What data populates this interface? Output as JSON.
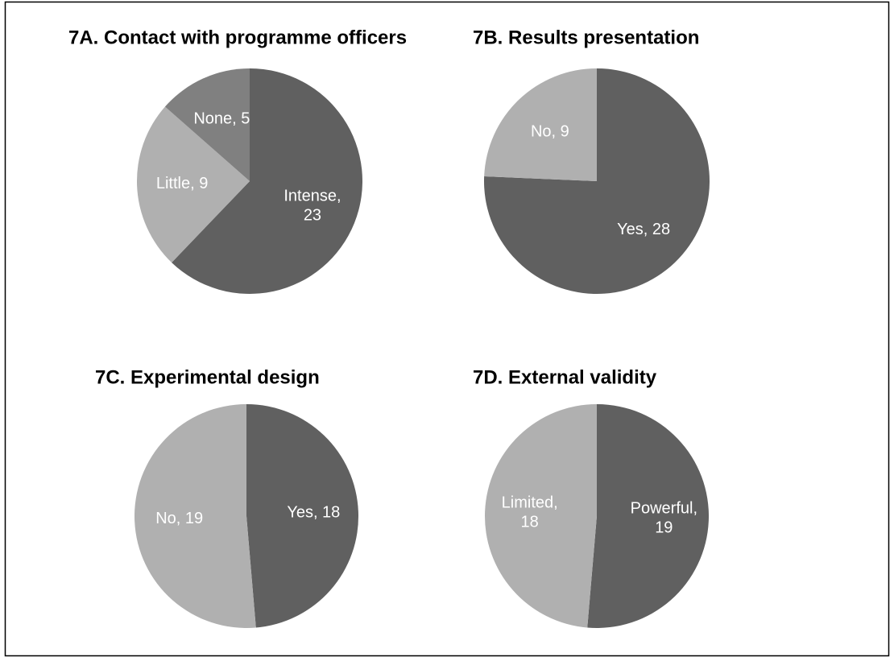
{
  "chart_data": [
    {
      "type": "pie",
      "title": "7A. Contact with programme officers",
      "categories": [
        "Intense",
        "Little",
        "None"
      ],
      "values": [
        23,
        9,
        5
      ],
      "value_labels": [
        "Intense, 23",
        "Little, 9",
        "None, 5"
      ],
      "colors": [
        "#606060",
        "#b0b0b0",
        "#808080"
      ]
    },
    {
      "type": "pie",
      "title": "7B. Results presentation",
      "categories": [
        "Yes",
        "No"
      ],
      "values": [
        28,
        9
      ],
      "value_labels": [
        "Yes, 28",
        "No, 9"
      ],
      "colors": [
        "#606060",
        "#b0b0b0"
      ]
    },
    {
      "type": "pie",
      "title": "7C. Experimental design",
      "categories": [
        "Yes",
        "No"
      ],
      "values": [
        18,
        19
      ],
      "value_labels": [
        "Yes, 18",
        "No, 19"
      ],
      "colors": [
        "#606060",
        "#b0b0b0"
      ]
    },
    {
      "type": "pie",
      "title": "7D. External validity",
      "categories": [
        "Powerful",
        "Limited"
      ],
      "values": [
        19,
        18
      ],
      "value_labels": [
        "Powerful, 19",
        "Limited, 18"
      ],
      "colors": [
        "#606060",
        "#b0b0b0"
      ]
    }
  ]
}
